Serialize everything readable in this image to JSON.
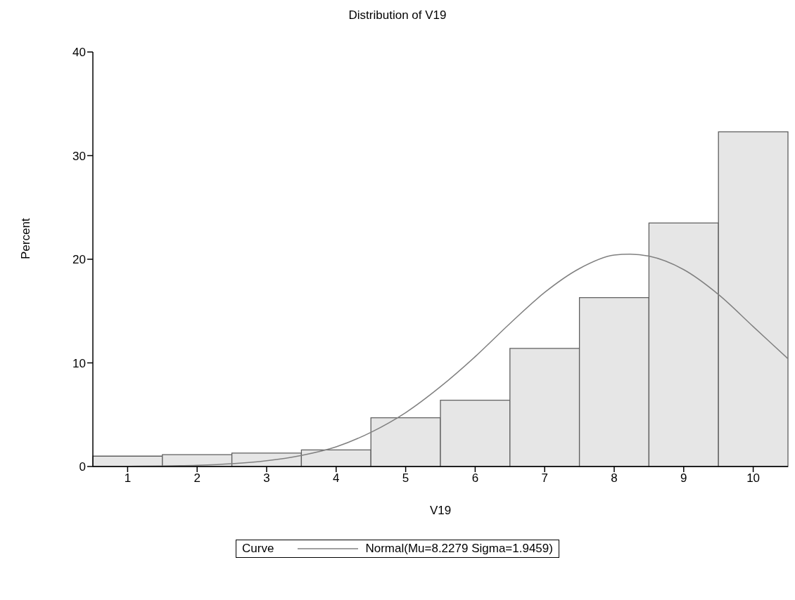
{
  "chart_data": {
    "type": "histogram",
    "title": "Distribution of V19",
    "xlabel": "V19",
    "ylabel": "Percent",
    "legend_title": "Curve",
    "bins": [
      0.5,
      1.5,
      2.5,
      3.5,
      4.5,
      5.5,
      6.5,
      7.5,
      8.5,
      9.5,
      10.5
    ],
    "values": [
      1.0,
      1.15,
      1.3,
      1.6,
      4.7,
      6.4,
      11.4,
      16.3,
      23.5,
      32.3
    ],
    "color": "#e6e6e6",
    "series": [
      {
        "type": "line",
        "name": "Normal(Mu=8.2279 Sigma=1.9459)",
        "color": "#808080",
        "marker": "none",
        "x": [
          0.5,
          1,
          1.5,
          2,
          2.5,
          3,
          3.5,
          4,
          4.5,
          5,
          5.5,
          6,
          6.5,
          7,
          7.5,
          8,
          8.2279,
          8.5,
          9,
          9.5,
          10,
          10.5
        ],
        "values": [
          0.01,
          0.02,
          0.05,
          0.12,
          0.27,
          0.56,
          1.07,
          1.9,
          3.3,
          5.2,
          7.7,
          10.6,
          13.8,
          16.8,
          19.1,
          20.4,
          20.5,
          20.3,
          19.0,
          16.6,
          13.5,
          10.4
        ]
      }
    ],
    "xlim": [
      0.5,
      10.5
    ],
    "xticks": [
      1,
      2,
      3,
      4,
      5,
      6,
      7,
      8,
      9,
      10
    ],
    "ylim": [
      0,
      40
    ],
    "yticks": [
      0,
      10,
      20,
      30,
      40
    ],
    "grid": false,
    "legend": "bottom"
  }
}
